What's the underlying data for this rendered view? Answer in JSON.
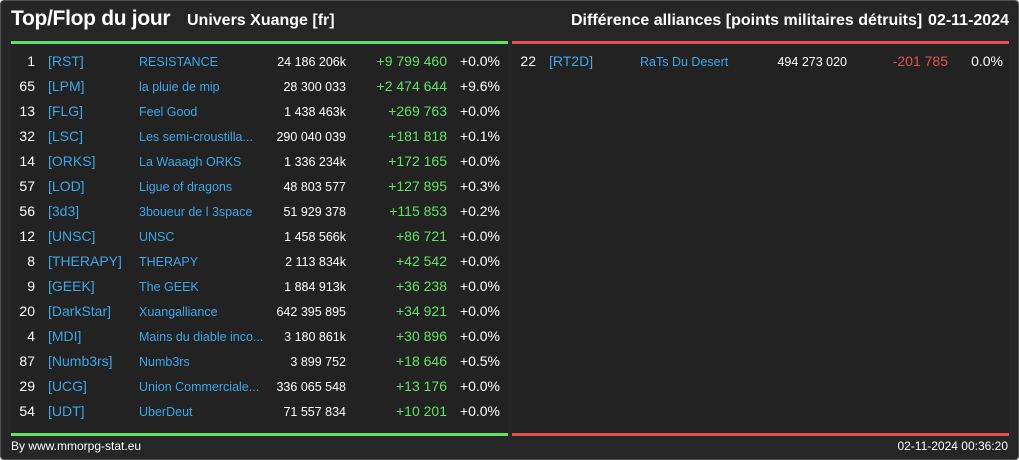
{
  "header": {
    "title": "Top/Flop du jour",
    "universe": "Univers Xuange [fr]",
    "subtitle": "Différence alliances [points militaires détruits]",
    "date": "02-11-2024"
  },
  "colors": {
    "background": "#262626",
    "top_accent": "#5fe35f",
    "flop_accent": "#e35050",
    "link": "#3aa7e8",
    "text": "#ffffff"
  },
  "top": [
    {
      "rank": "1",
      "tag": "[RST]",
      "name": "RESISTANCE",
      "points": "24 186 206k",
      "diff": "+9 799 460",
      "pct": "+0.0%"
    },
    {
      "rank": "65",
      "tag": "[LPM]",
      "name": "la pluie de mip",
      "points": "28 300 033",
      "diff": "+2 474 644",
      "pct": "+9.6%"
    },
    {
      "rank": "13",
      "tag": "[FLG]",
      "name": "Feel Good",
      "points": "1 438 463k",
      "diff": "+269 763",
      "pct": "+0.0%"
    },
    {
      "rank": "32",
      "tag": "[LSC]",
      "name": "Les semi-croustilla...",
      "points": "290 040 039",
      "diff": "+181 818",
      "pct": "+0.1%"
    },
    {
      "rank": "14",
      "tag": "[ORKS]",
      "name": "La Waaagh ORKS",
      "points": "1 336 234k",
      "diff": "+172 165",
      "pct": "+0.0%"
    },
    {
      "rank": "57",
      "tag": "[LOD]",
      "name": "Ligue of dragons",
      "points": "48 803 577",
      "diff": "+127 895",
      "pct": "+0.3%"
    },
    {
      "rank": "56",
      "tag": "[3d3]",
      "name": "3boueur de l 3space",
      "points": "51 929 378",
      "diff": "+115 853",
      "pct": "+0.2%"
    },
    {
      "rank": "12",
      "tag": "[UNSC]",
      "name": "UNSC",
      "points": "1 458 566k",
      "diff": "+86 721",
      "pct": "+0.0%"
    },
    {
      "rank": "8",
      "tag": "[THERAPY]",
      "name": "THERAPY",
      "points": "2 113 834k",
      "diff": "+42 542",
      "pct": "+0.0%"
    },
    {
      "rank": "9",
      "tag": "[GEEK]",
      "name": "The GEEK",
      "points": "1 884 913k",
      "diff": "+36 238",
      "pct": "+0.0%"
    },
    {
      "rank": "20",
      "tag": "[DarkStar]",
      "name": "Xuangalliance",
      "points": "642 395 895",
      "diff": "+34 921",
      "pct": "+0.0%"
    },
    {
      "rank": "4",
      "tag": "[MDI]",
      "name": "Mains du diable inco...",
      "points": "3 180 861k",
      "diff": "+30 896",
      "pct": "+0.0%"
    },
    {
      "rank": "87",
      "tag": "[Numb3rs]",
      "name": "Numb3rs",
      "points": "3 899 752",
      "diff": "+18 646",
      "pct": "+0.5%"
    },
    {
      "rank": "29",
      "tag": "[UCG]",
      "name": "Union Commerciale...",
      "points": "336 065 548",
      "diff": "+13 176",
      "pct": "+0.0%"
    },
    {
      "rank": "54",
      "tag": "[UDT]",
      "name": "UberDeut",
      "points": "71 557 834",
      "diff": "+10 201",
      "pct": "+0.0%"
    }
  ],
  "flop": [
    {
      "rank": "22",
      "tag": "[RT2D]",
      "name": "RaTs Du Desert",
      "points": "494 273 020",
      "diff": "-201 785",
      "pct": "0.0%"
    }
  ],
  "footer": {
    "source": "By www.mmorpg-stat.eu",
    "timestamp": "02-11-2024 00:36:20"
  }
}
